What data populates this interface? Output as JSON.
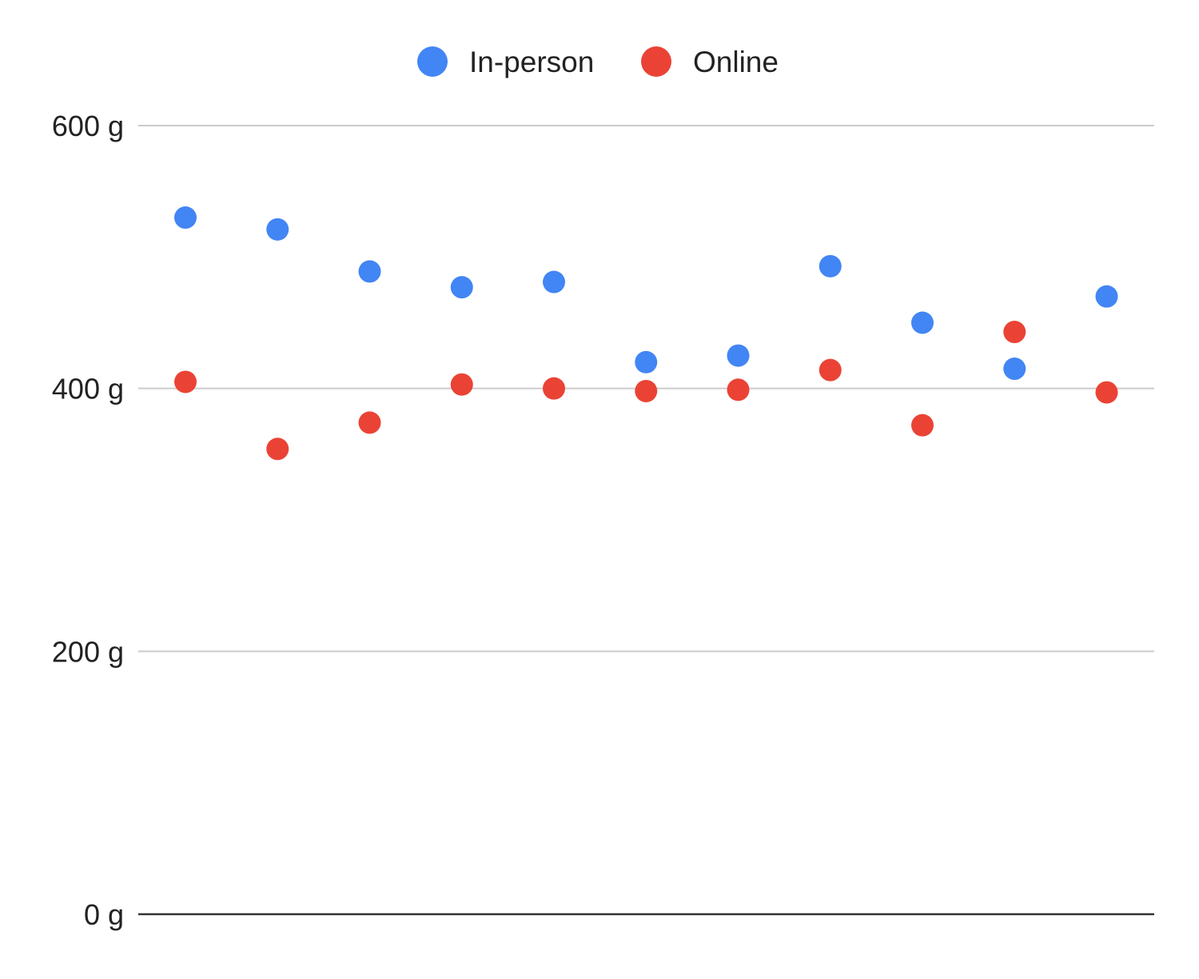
{
  "chart_data": {
    "type": "scatter",
    "title": "",
    "xlabel": "",
    "ylabel": "",
    "legend_position": "top-center",
    "grid": true,
    "ylim": [
      0,
      600
    ],
    "y_ticks": [
      {
        "value": 0,
        "label": "0 g"
      },
      {
        "value": 200,
        "label": "200 g"
      },
      {
        "value": 400,
        "label": "400 g"
      },
      {
        "value": 600,
        "label": "600 g"
      }
    ],
    "x": [
      1,
      2,
      3,
      4,
      5,
      6,
      7,
      8,
      9,
      10,
      11
    ],
    "series": [
      {
        "name": "In-person",
        "color": "#4285F4",
        "values": [
          530,
          521,
          489,
          477,
          481,
          420,
          425,
          493,
          450,
          415,
          470
        ]
      },
      {
        "name": "Online",
        "color": "#EA4335",
        "values": [
          405,
          354,
          374,
          403,
          400,
          398,
          399,
          414,
          372,
          443,
          397
        ]
      }
    ],
    "gridline_color": "#cccccc",
    "baseline_color": "#333333"
  }
}
